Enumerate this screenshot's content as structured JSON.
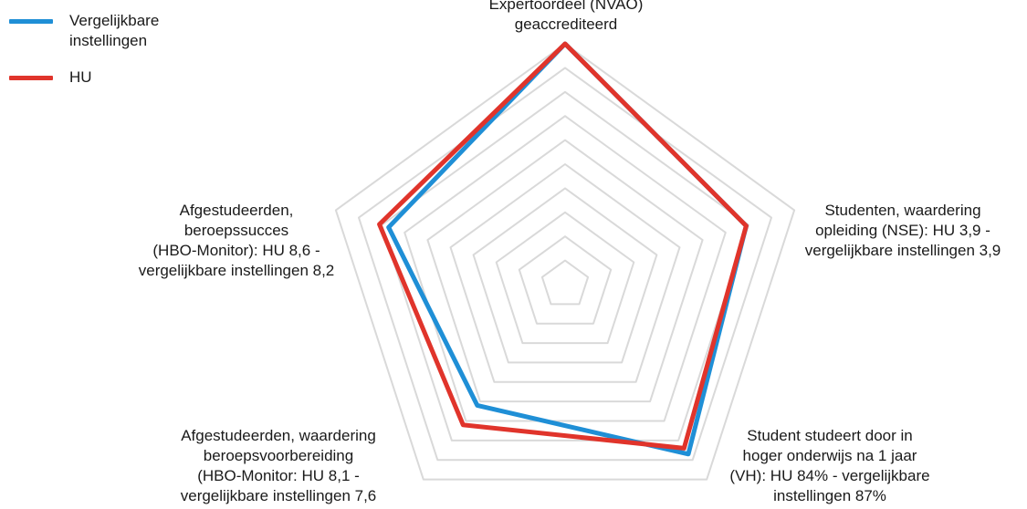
{
  "chart_data": {
    "type": "radar",
    "axes": [
      {
        "label": "Expertoordeel (NVAO)\ngeaccrediteerd"
      },
      {
        "label": "Studenten, waardering\nopleiding (NSE): HU 3,9 -\nvergelijkbare instellingen 3,9"
      },
      {
        "label": "Student studeert door in\nhoger onderwijs na 1 jaar\n(VH): HU 84% - vergelijkbare\ninstellingen 87%"
      },
      {
        "label": "Afgestudeerden, waardering\nberoepsvoorbereiding\n(HBO-Monitor: HU 8,1 -\nvergelijkbare instellingen 7,6"
      },
      {
        "label": "Afgestudeerden,\nberoepssucces\n(HBO-Monitor): HU 8,6 -\nvergelijkbare instellingen 8,2"
      }
    ],
    "rings": 10,
    "range": [
      0,
      1
    ],
    "series": [
      {
        "name": "Vergelijkbare\ninstellingen",
        "color": "#1f8fd6",
        "values": [
          1.0,
          0.79,
          0.87,
          0.62,
          0.77
        ]
      },
      {
        "name": "HU",
        "color": "#e0342b",
        "values": [
          1.0,
          0.79,
          0.84,
          0.72,
          0.81
        ]
      }
    ],
    "legend_position": "top-left",
    "grid_color": "#d9d9d9"
  }
}
